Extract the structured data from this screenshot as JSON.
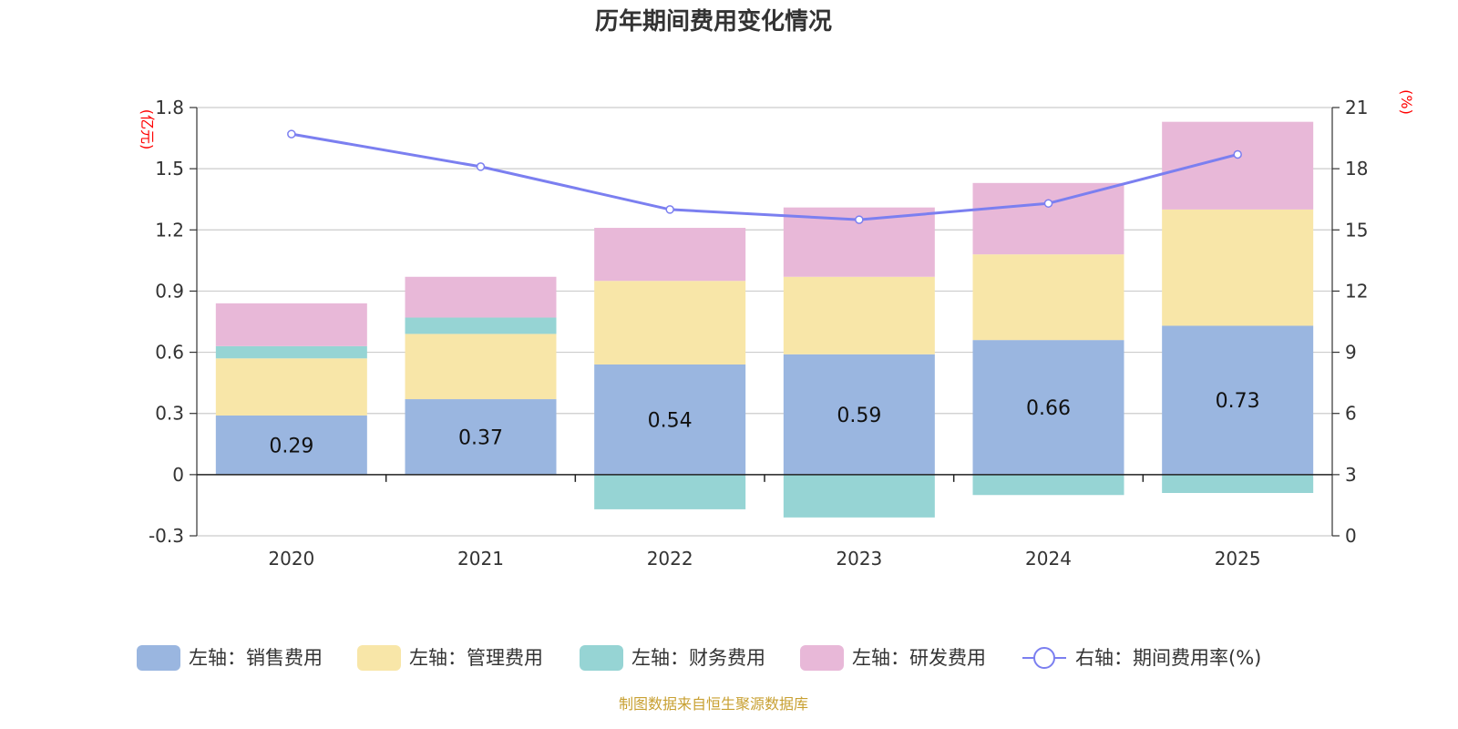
{
  "chart_data": {
    "type": "bar",
    "title": "历年期间费用变化情况",
    "categories": [
      "2020",
      "2021",
      "2022",
      "2023",
      "2024",
      "2025"
    ],
    "left_axis": {
      "unit": "(亿元)",
      "ylim": [
        -0.3,
        1.8
      ],
      "ticks": [
        "-0.3",
        "0",
        "0.3",
        "0.6",
        "0.9",
        "1.2",
        "1.5",
        "1.8"
      ]
    },
    "right_axis": {
      "unit": "(%)",
      "ylim": [
        0,
        21
      ],
      "ticks": [
        "0",
        "3",
        "6",
        "9",
        "12",
        "15",
        "18",
        "21"
      ]
    },
    "series": [
      {
        "name": "左轴：销售费用",
        "color": "#9ab6e0",
        "values": [
          0.29,
          0.37,
          0.54,
          0.59,
          0.66,
          0.73
        ],
        "labels": [
          "0.29",
          "0.37",
          "0.54",
          "0.59",
          "0.66",
          "0.73"
        ]
      },
      {
        "name": "左轴：管理费用",
        "color": "#f8e6a8",
        "values": [
          0.28,
          0.32,
          0.41,
          0.38,
          0.42,
          0.57
        ]
      },
      {
        "name": "左轴：财务费用",
        "color": "#96d4d4",
        "values": [
          0.06,
          0.08,
          -0.17,
          -0.21,
          -0.1,
          -0.09
        ]
      },
      {
        "name": "左轴：研发费用",
        "color": "#e8b8d8",
        "values": [
          0.21,
          0.2,
          0.26,
          0.34,
          0.35,
          0.43
        ]
      }
    ],
    "line_series": {
      "name": "右轴：期间费用率(%)",
      "color": "#7b7ff0",
      "values": [
        19.7,
        18.1,
        16.0,
        15.5,
        16.3,
        18.7
      ]
    },
    "grid": true,
    "legend_position": "bottom",
    "source": "制图数据来自恒生聚源数据库"
  }
}
